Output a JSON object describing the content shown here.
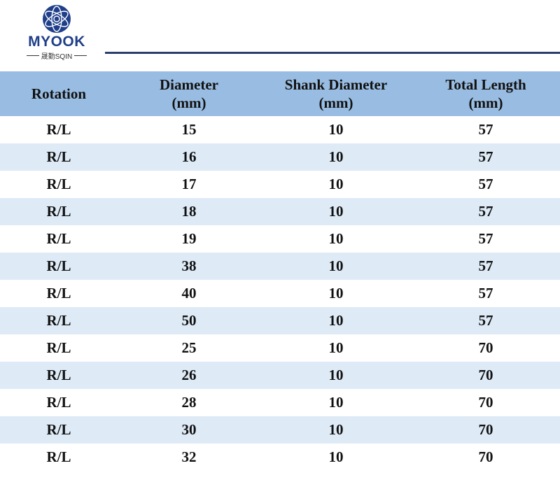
{
  "brand": {
    "name": "MYOOK",
    "subtitle": "晟勤SQIN",
    "accent_color": "#1f3f8a",
    "line_color": "#2a3f6e"
  },
  "table": {
    "header_color": "#99bde2",
    "stripe_color": "#deebf7",
    "headers": [
      [
        "Rotation"
      ],
      [
        "Diameter",
        "(mm)"
      ],
      [
        "Shank Diameter",
        "(mm)"
      ],
      [
        "Total Length",
        "(mm)"
      ]
    ],
    "rows": [
      [
        "R/L",
        "15",
        "10",
        "57"
      ],
      [
        "R/L",
        "16",
        "10",
        "57"
      ],
      [
        "R/L",
        "17",
        "10",
        "57"
      ],
      [
        "R/L",
        "18",
        "10",
        "57"
      ],
      [
        "R/L",
        "19",
        "10",
        "57"
      ],
      [
        "R/L",
        "38",
        "10",
        "57"
      ],
      [
        "R/L",
        "40",
        "10",
        "57"
      ],
      [
        "R/L",
        "50",
        "10",
        "57"
      ],
      [
        "R/L",
        "25",
        "10",
        "70"
      ],
      [
        "R/L",
        "26",
        "10",
        "70"
      ],
      [
        "R/L",
        "28",
        "10",
        "70"
      ],
      [
        "R/L",
        "30",
        "10",
        "70"
      ],
      [
        "R/L",
        "32",
        "10",
        "70"
      ]
    ]
  }
}
